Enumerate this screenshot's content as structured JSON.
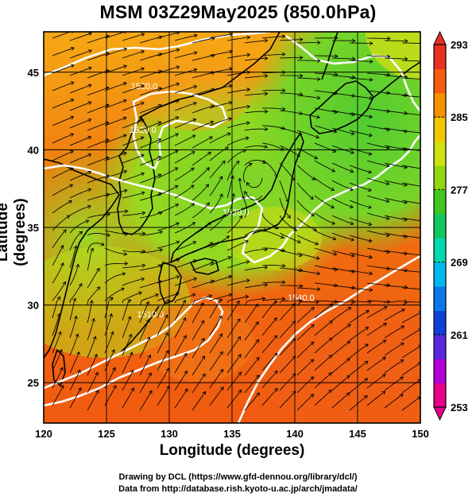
{
  "title": "MSM 03Z29May2025 (850.0hPa)",
  "xlabel": "Longitude (degrees)",
  "ylabel": "Latitude  (degrees)",
  "credits": {
    "line1": "Drawing by DCL (https://www.gfd-dennou.org/library/dcl/)",
    "line2": "Data from http://database.rish.kyoto-u.ac.jp/arch/jmadata/"
  },
  "map": {
    "lon_range": [
      120,
      150
    ],
    "lat_range": [
      22.4,
      47.6
    ],
    "x_ticks": [
      120,
      125,
      130,
      135,
      140,
      145,
      150
    ],
    "y_ticks": [
      25,
      30,
      35,
      40,
      45
    ],
    "contour_labels": [
      {
        "text": "1520.0",
        "lon": 128.0,
        "lat": 43.9
      },
      {
        "text": "1520.0",
        "lon": 127.9,
        "lat": 41.1
      },
      {
        "text": "1510.0",
        "lon": 128.5,
        "lat": 29.2
      },
      {
        "text": "1540.0",
        "lon": 140.5,
        "lat": 30.3
      },
      {
        "text": "1520.0",
        "lon": 135.3,
        "lat": 35.8
      }
    ]
  },
  "colorbar": {
    "min": 253,
    "max": 293,
    "tick_labels": [
      "293",
      "285",
      "277",
      "269",
      "261",
      "253"
    ],
    "colors": [
      "#e8008c",
      "#b400d8",
      "#5a28e0",
      "#1040d8",
      "#0a78e8",
      "#00b8f0",
      "#00d8b0",
      "#10c860",
      "#40c820",
      "#90d810",
      "#d0e010",
      "#f0c800",
      "#f89000",
      "#f85a10",
      "#e83020"
    ]
  }
}
